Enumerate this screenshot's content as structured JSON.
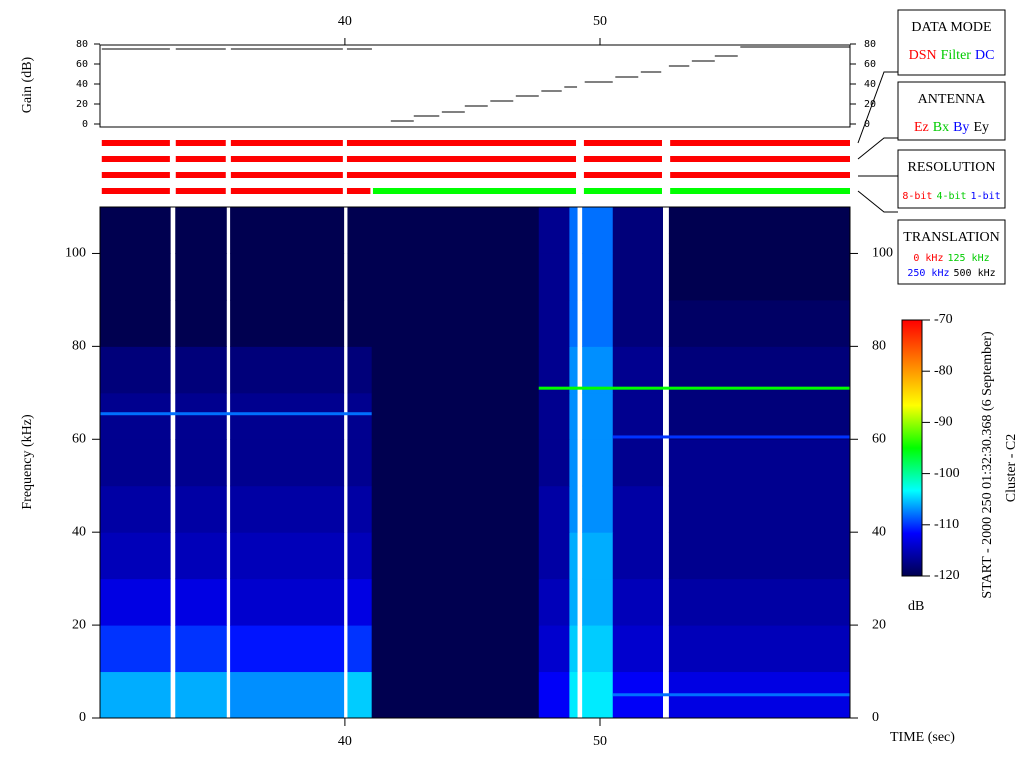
{
  "chart_data": [
    {
      "type": "line",
      "ylabel": "Gain (dB)",
      "color": "#000000",
      "x": [
        30.47,
        33.14,
        null,
        33.37,
        35.33,
        null,
        35.53,
        39.92,
        null,
        40.08,
        41.06,
        null,
        41.8,
        42.7,
        null,
        42.7,
        43.7,
        null,
        43.8,
        44.7,
        null,
        44.7,
        45.6,
        null,
        45.7,
        46.6,
        null,
        46.7,
        47.6,
        null,
        47.7,
        48.5,
        null,
        48.6,
        49.1,
        null,
        49.4,
        50.5,
        null,
        50.6,
        51.5,
        null,
        51.6,
        52.4,
        null,
        52.7,
        53.5,
        null,
        53.6,
        54.5,
        null,
        54.5,
        55.4,
        null,
        55.5,
        59.8
      ],
      "values": [
        75,
        75,
        null,
        75,
        75,
        null,
        75,
        75,
        null,
        75,
        75,
        null,
        3,
        3,
        null,
        8,
        8,
        null,
        12,
        12,
        null,
        18,
        18,
        null,
        23,
        23,
        null,
        28,
        28,
        null,
        33,
        33,
        null,
        37,
        37,
        null,
        42,
        42,
        null,
        47,
        47,
        null,
        52,
        52,
        null,
        58,
        58,
        null,
        63,
        63,
        null,
        68,
        68,
        null,
        77,
        77
      ],
      "xlim": [
        30.4,
        59.8
      ],
      "xticks": [
        40,
        50
      ],
      "ylim": [
        0,
        80
      ],
      "yticks": [
        0,
        20,
        40,
        60,
        80
      ]
    },
    {
      "type": "timeline",
      "xlim": [
        30.4,
        59.8
      ],
      "rows": [
        {
          "segments": [
            {
              "x": [
                30.47,
                33.14
              ],
              "color": "#ff0000"
            },
            {
              "x": [
                33.37,
                35.33
              ],
              "color": "#ff0000"
            },
            {
              "x": [
                35.53,
                39.92
              ],
              "color": "#ff0000"
            },
            {
              "x": [
                40.08,
                49.06
              ],
              "color": "#ff0000"
            },
            {
              "x": [
                49.37,
                52.43
              ],
              "color": "#ff0000"
            },
            {
              "x": [
                52.75,
                59.8
              ],
              "color": "#ff0000"
            }
          ]
        },
        {
          "segments": [
            {
              "x": [
                30.47,
                33.14
              ],
              "color": "#ff0000"
            },
            {
              "x": [
                33.37,
                35.33
              ],
              "color": "#ff0000"
            },
            {
              "x": [
                35.53,
                39.92
              ],
              "color": "#ff0000"
            },
            {
              "x": [
                40.08,
                49.06
              ],
              "color": "#ff0000"
            },
            {
              "x": [
                49.37,
                52.43
              ],
              "color": "#ff0000"
            },
            {
              "x": [
                52.75,
                59.8
              ],
              "color": "#ff0000"
            }
          ]
        },
        {
          "segments": [
            {
              "x": [
                30.47,
                33.14
              ],
              "color": "#ff0000"
            },
            {
              "x": [
                33.37,
                35.33
              ],
              "color": "#ff0000"
            },
            {
              "x": [
                35.53,
                39.92
              ],
              "color": "#ff0000"
            },
            {
              "x": [
                40.08,
                49.06
              ],
              "color": "#ff0000"
            },
            {
              "x": [
                49.37,
                52.43
              ],
              "color": "#ff0000"
            },
            {
              "x": [
                52.75,
                59.8
              ],
              "color": "#ff0000"
            }
          ]
        },
        {
          "segments": [
            {
              "x": [
                30.47,
                33.14
              ],
              "color": "#ff0000"
            },
            {
              "x": [
                33.37,
                35.33
              ],
              "color": "#ff0000"
            },
            {
              "x": [
                35.53,
                39.92
              ],
              "color": "#ff0000"
            },
            {
              "x": [
                40.08,
                41.0
              ],
              "color": "#ff0000"
            },
            {
              "x": [
                41.1,
                49.06
              ],
              "color": "#00ff00"
            },
            {
              "x": [
                49.37,
                52.43
              ],
              "color": "#00ff00"
            },
            {
              "x": [
                52.75,
                59.8
              ],
              "color": "#00ff00"
            }
          ]
        }
      ]
    },
    {
      "type": "heatmap",
      "xlabel": "TIME (sec)",
      "ylabel": "Frequency (kHz)",
      "x_bins": [
        30.4,
        33.15,
        33.35,
        35.35,
        35.5,
        39.95,
        40.1,
        41.05,
        47.6,
        48.8,
        49.1,
        49.3,
        50.5,
        52.45,
        52.7,
        59.8
      ],
      "y_bins": [
        0,
        10,
        20,
        30,
        40,
        50,
        60,
        70,
        80,
        90,
        100,
        110
      ],
      "z": [
        [
          -106,
          null,
          -106,
          null,
          -107,
          null,
          -105,
          -120,
          -112,
          -104,
          null,
          -104,
          -112,
          null,
          -113
        ],
        [
          -110,
          null,
          -110,
          null,
          -111,
          null,
          -110,
          -120,
          -114,
          -105,
          null,
          -105,
          -114,
          null,
          -115
        ],
        [
          -113,
          null,
          -113,
          null,
          -114,
          null,
          -113,
          -120,
          -115,
          -106,
          null,
          -106,
          -115,
          null,
          -116
        ],
        [
          -115,
          null,
          -115,
          null,
          -115,
          null,
          -115,
          -120,
          -116,
          -106,
          null,
          -106,
          -116,
          null,
          -117
        ],
        [
          -116,
          null,
          -116,
          null,
          -116,
          null,
          -116,
          -120,
          -116,
          -107,
          null,
          -107,
          -116,
          null,
          -117
        ],
        [
          -117,
          null,
          -117,
          null,
          -117,
          null,
          -117,
          -120,
          -117,
          -107,
          null,
          -107,
          -117,
          null,
          -117
        ],
        [
          -117,
          null,
          -117,
          null,
          -117,
          null,
          -117,
          -120,
          -117,
          -107,
          null,
          -107,
          -117,
          null,
          -118
        ],
        [
          -118,
          null,
          -118,
          null,
          -118,
          null,
          -118,
          -120,
          -117,
          -107,
          null,
          -107,
          -117,
          null,
          -118
        ],
        [
          -120,
          null,
          -120,
          null,
          -120,
          null,
          -120,
          -120,
          -117,
          -108,
          null,
          -108,
          -118,
          null,
          -119
        ],
        [
          -120,
          null,
          -120,
          null,
          -120,
          null,
          -120,
          -120,
          -117,
          -108,
          null,
          -108,
          -118,
          null,
          -120
        ],
        [
          -120,
          null,
          -120,
          null,
          -120,
          null,
          -120,
          -120,
          -117,
          -108,
          null,
          -108,
          -118,
          null,
          -120
        ]
      ],
      "tones": [
        {
          "x": [
            30.4,
            41.05
          ],
          "y": 65.5,
          "z": -108
        },
        {
          "x": [
            47.6,
            59.8
          ],
          "y": 71,
          "z": -95
        },
        {
          "x": [
            50.5,
            59.8
          ],
          "y": 60.5,
          "z": -110
        },
        {
          "x": [
            50.5,
            59.8
          ],
          "y": 5,
          "z": -108
        }
      ],
      "xlim": [
        30.4,
        59.8
      ],
      "xticks": [
        40,
        50
      ],
      "ylim": [
        0,
        110
      ],
      "yticks": [
        0,
        20,
        40,
        60,
        80,
        100
      ]
    },
    {
      "type": "colorbar",
      "label": "dB",
      "zlim": [
        -120,
        -70
      ],
      "zticks": [
        -120,
        -110,
        -100,
        -90,
        -80,
        -70
      ],
      "colormap": [
        "#000050",
        "#0000ff",
        "#00ffff",
        "#00ff00",
        "#ffff00",
        "#ff8000",
        "#ff0000"
      ]
    }
  ],
  "annotations": {
    "start": "START - 2000 250 01:32:30.368 (6 September)",
    "spacecraft": "Cluster - C2"
  },
  "side_panels": [
    {
      "title": "DATA MODE",
      "lines": [
        [
          {
            "text": "DSN",
            "color": "#ff0000"
          },
          {
            "text": "Filter",
            "color": "#00cc00"
          },
          {
            "text": "DC",
            "color": "#0000ff"
          }
        ]
      ]
    },
    {
      "title": "ANTENNA",
      "lines": [
        [
          {
            "text": "Ez",
            "color": "#ff0000"
          },
          {
            "text": "Bx",
            "color": "#00cc00"
          },
          {
            "text": "By",
            "color": "#0000ff"
          },
          {
            "text": "Ey",
            "color": "#000000"
          }
        ]
      ]
    },
    {
      "title": "RESOLUTION",
      "lines": [
        [
          {
            "text": "8-bit",
            "color": "#ff0000"
          },
          {
            "text": "4-bit",
            "color": "#00cc00"
          },
          {
            "text": "1-bit",
            "color": "#0000ff"
          }
        ]
      ]
    },
    {
      "title": "TRANSLATION",
      "lines": [
        [
          {
            "text": "0 kHz",
            "color": "#ff0000"
          },
          {
            "text": "125 kHz",
            "color": "#00cc00"
          }
        ],
        [
          {
            "text": "250 kHz",
            "color": "#0000ff"
          },
          {
            "text": "500 kHz",
            "color": "#000000"
          }
        ]
      ]
    }
  ]
}
